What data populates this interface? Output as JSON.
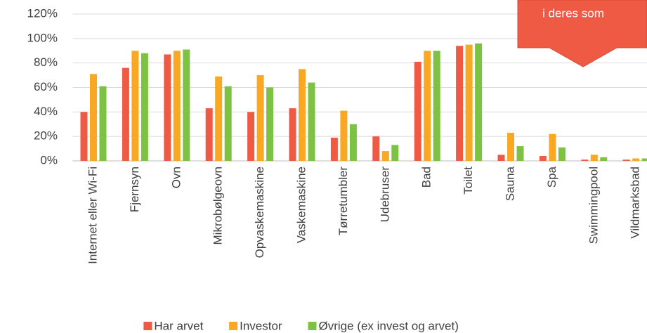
{
  "chart_data": {
    "type": "bar",
    "categories": [
      "Internet eller Wi-Fi",
      "Fjernsyn",
      "Ovn",
      "Mikrobølgeovn",
      "Opvaskemaskine",
      "Vaskemaskine",
      "Tørretumbler",
      "Udebruser",
      "Bad",
      "Toilet",
      "Sauna",
      "Spa",
      "Swimmingpool",
      "Vildmarksbad"
    ],
    "series": [
      {
        "name": "Har arvet",
        "color": "#ee5a43",
        "values": [
          40,
          76,
          87,
          43,
          40,
          43,
          19,
          20,
          81,
          94,
          5,
          4,
          1,
          1
        ]
      },
      {
        "name": "Investor",
        "color": "#f8a823",
        "values": [
          71,
          90,
          90,
          69,
          70,
          75,
          41,
          8,
          90,
          95,
          23,
          22,
          5,
          2
        ]
      },
      {
        "name": "Øvrige (ex invest og arvet)",
        "color": "#7dc242",
        "values": [
          61,
          88,
          91,
          61,
          60,
          64,
          30,
          13,
          90,
          96,
          12,
          11,
          3,
          2
        ]
      }
    ],
    "ylim": [
      0,
      120
    ],
    "yticks": [
      {
        "value": 0,
        "label": "0%"
      },
      {
        "value": 20,
        "label": "20%"
      },
      {
        "value": 40,
        "label": "40%"
      },
      {
        "value": 60,
        "label": "60%"
      },
      {
        "value": 80,
        "label": "80%"
      },
      {
        "value": 100,
        "label": "100%"
      },
      {
        "value": 120,
        "label": "120%"
      }
    ],
    "grid": true,
    "annotation": "i deres som"
  }
}
